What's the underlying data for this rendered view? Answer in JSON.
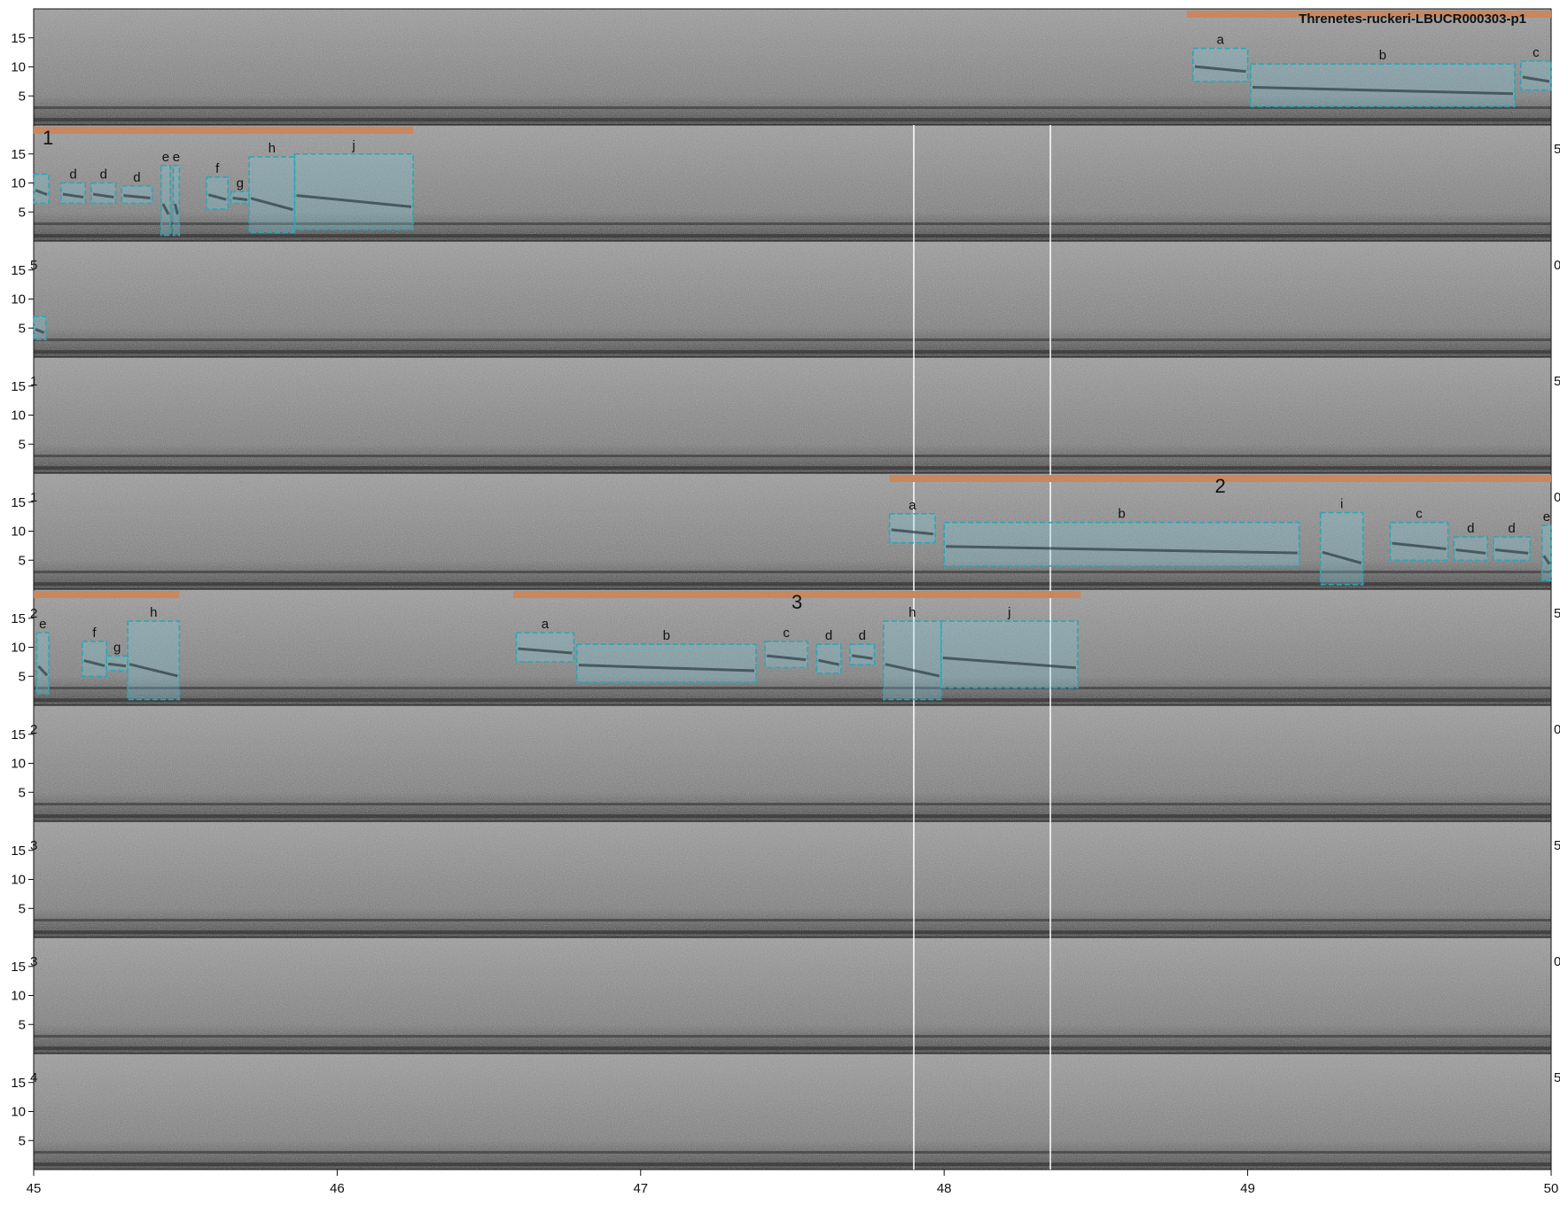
{
  "chart_data": {
    "type": "spectrogram",
    "title": "Threnetes-ruckeri-LBUCR000303-p1",
    "xlabel": "",
    "ylabel": "",
    "x_range": [
      45,
      50
    ],
    "x_ticks": [
      "45",
      "46",
      "47",
      "48",
      "49",
      "50"
    ],
    "y_range": [
      0,
      20
    ],
    "y_ticks": [
      "5",
      "10",
      "15"
    ],
    "row_count": 10,
    "title_row": 0,
    "colors": {
      "spectrogram": "#888888",
      "bout_bar": "#c8875f",
      "note_box": "#2aa7b8",
      "note_fill": "#7fd4e6",
      "guide_line": "#ffffff"
    },
    "guide_lines": [
      47.9,
      48.35
    ],
    "bouts": [
      {
        "row": 0,
        "label": "",
        "start": 48.8,
        "end": 50.0
      },
      {
        "row": 1,
        "label": "1",
        "start": 45.0,
        "end": 46.25
      },
      {
        "row": 4,
        "label": "2",
        "start": 47.82,
        "end": 50.0
      },
      {
        "row": 5,
        "label": "",
        "start": 45.0,
        "end": 45.48
      },
      {
        "row": 5,
        "label": "3",
        "start": 46.58,
        "end": 48.45
      }
    ],
    "notes": [
      {
        "row": 0,
        "label": "a",
        "start": 48.82,
        "end": 49.0,
        "fmin": 7.5,
        "fmax": 13.2
      },
      {
        "row": 0,
        "label": "b",
        "start": 49.01,
        "end": 49.88,
        "fmin": 3.2,
        "fmax": 10.5
      },
      {
        "row": 0,
        "label": "c",
        "start": 49.9,
        "end": 50.0,
        "fmin": 6.0,
        "fmax": 11.0
      },
      {
        "row": 1,
        "label": "",
        "start": 45.0,
        "end": 45.05,
        "fmin": 6.5,
        "fmax": 11.5
      },
      {
        "row": 1,
        "label": "d",
        "start": 45.09,
        "end": 45.17,
        "fmin": 6.5,
        "fmax": 10.0
      },
      {
        "row": 1,
        "label": "d",
        "start": 45.19,
        "end": 45.27,
        "fmin": 6.5,
        "fmax": 10.0
      },
      {
        "row": 1,
        "label": "d",
        "start": 45.29,
        "end": 45.39,
        "fmin": 6.5,
        "fmax": 9.5
      },
      {
        "row": 1,
        "label": "e",
        "start": 45.42,
        "end": 45.45,
        "fmin": 1.0,
        "fmax": 13.0
      },
      {
        "row": 1,
        "label": "e",
        "start": 45.46,
        "end": 45.48,
        "fmin": 1.0,
        "fmax": 13.0
      },
      {
        "row": 1,
        "label": "f",
        "start": 45.57,
        "end": 45.64,
        "fmin": 5.5,
        "fmax": 11.0
      },
      {
        "row": 1,
        "label": "g",
        "start": 45.65,
        "end": 45.71,
        "fmin": 6.5,
        "fmax": 8.5
      },
      {
        "row": 1,
        "label": "h",
        "start": 45.71,
        "end": 45.86,
        "fmin": 1.5,
        "fmax": 14.5
      },
      {
        "row": 1,
        "label": "j",
        "start": 45.86,
        "end": 46.25,
        "fmin": 2.0,
        "fmax": 15.0
      },
      {
        "row": 2,
        "label": "",
        "start": 45.0,
        "end": 45.04,
        "fmin": 3.0,
        "fmax": 7.0
      },
      {
        "row": 4,
        "label": "a",
        "start": 47.82,
        "end": 47.97,
        "fmin": 8.0,
        "fmax": 13.0
      },
      {
        "row": 4,
        "label": "b",
        "start": 48.0,
        "end": 49.17,
        "fmin": 4.0,
        "fmax": 11.5
      },
      {
        "row": 4,
        "label": "i",
        "start": 49.24,
        "end": 49.38,
        "fmin": 0.8,
        "fmax": 13.2
      },
      {
        "row": 4,
        "label": "c",
        "start": 49.47,
        "end": 49.66,
        "fmin": 5.0,
        "fmax": 11.5
      },
      {
        "row": 4,
        "label": "d",
        "start": 49.68,
        "end": 49.79,
        "fmin": 5.0,
        "fmax": 9.0
      },
      {
        "row": 4,
        "label": "d",
        "start": 49.81,
        "end": 49.93,
        "fmin": 5.0,
        "fmax": 9.0
      },
      {
        "row": 4,
        "label": "e",
        "start": 49.97,
        "end": 50.0,
        "fmin": 1.5,
        "fmax": 11.0
      },
      {
        "row": 5,
        "label": "e",
        "start": 45.01,
        "end": 45.05,
        "fmin": 2.0,
        "fmax": 12.5
      },
      {
        "row": 5,
        "label": "f",
        "start": 45.16,
        "end": 45.24,
        "fmin": 5.0,
        "fmax": 11.0
      },
      {
        "row": 5,
        "label": "g",
        "start": 45.24,
        "end": 45.31,
        "fmin": 6.0,
        "fmax": 8.5
      },
      {
        "row": 5,
        "label": "h",
        "start": 45.31,
        "end": 45.48,
        "fmin": 1.0,
        "fmax": 14.5
      },
      {
        "row": 5,
        "label": "a",
        "start": 46.59,
        "end": 46.78,
        "fmin": 7.5,
        "fmax": 12.5
      },
      {
        "row": 5,
        "label": "b",
        "start": 46.79,
        "end": 47.38,
        "fmin": 4.0,
        "fmax": 10.5
      },
      {
        "row": 5,
        "label": "c",
        "start": 47.41,
        "end": 47.55,
        "fmin": 6.5,
        "fmax": 11.0
      },
      {
        "row": 5,
        "label": "d",
        "start": 47.58,
        "end": 47.66,
        "fmin": 5.5,
        "fmax": 10.5
      },
      {
        "row": 5,
        "label": "d",
        "start": 47.69,
        "end": 47.77,
        "fmin": 7.0,
        "fmax": 10.5
      },
      {
        "row": 5,
        "label": "h",
        "start": 47.8,
        "end": 47.99,
        "fmin": 1.0,
        "fmax": 14.5
      },
      {
        "row": 5,
        "label": "j",
        "start": 47.99,
        "end": 48.44,
        "fmin": 3.0,
        "fmax": 14.5
      }
    ],
    "edge_labels": [
      {
        "row": 1,
        "side": "right",
        "text": "5"
      },
      {
        "row": 2,
        "side": "left",
        "text": "5"
      },
      {
        "row": 2,
        "side": "right",
        "text": "0"
      },
      {
        "row": 3,
        "side": "left",
        "text": "1"
      },
      {
        "row": 3,
        "side": "right",
        "text": "5"
      },
      {
        "row": 4,
        "side": "left",
        "text": "1"
      },
      {
        "row": 4,
        "side": "right",
        "text": "0"
      },
      {
        "row": 5,
        "side": "left",
        "text": "2"
      },
      {
        "row": 5,
        "side": "right",
        "text": "5"
      },
      {
        "row": 6,
        "side": "left",
        "text": "2"
      },
      {
        "row": 6,
        "side": "right",
        "text": "0"
      },
      {
        "row": 7,
        "side": "left",
        "text": "3"
      },
      {
        "row": 7,
        "side": "right",
        "text": "5"
      },
      {
        "row": 8,
        "side": "left",
        "text": "3"
      },
      {
        "row": 8,
        "side": "right",
        "text": "0"
      },
      {
        "row": 9,
        "side": "left",
        "text": "4"
      },
      {
        "row": 9,
        "side": "right",
        "text": "5"
      }
    ]
  }
}
